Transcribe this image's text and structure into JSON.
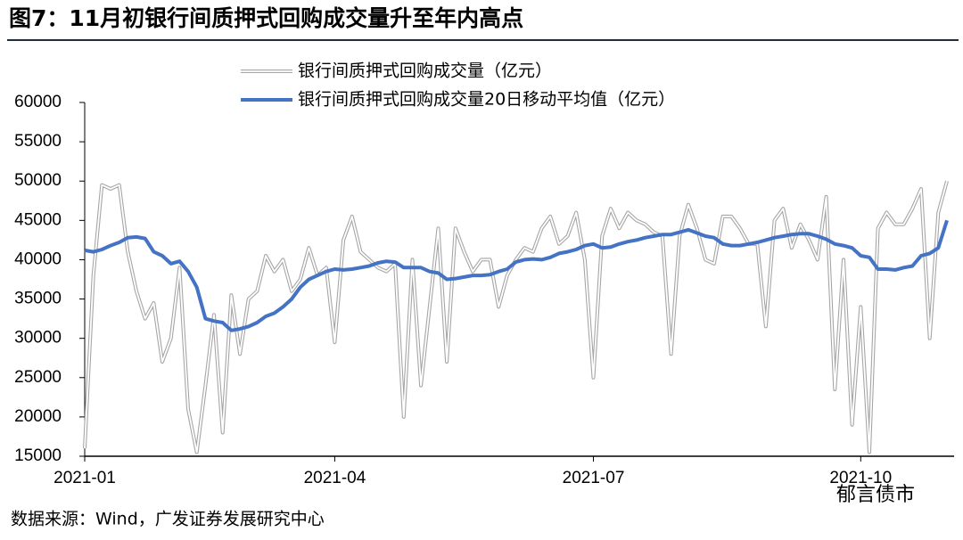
{
  "chart_data": {
    "type": "line",
    "title": "图7：11月初银行间质押式回购成交量升至年内高点",
    "source": "数据来源：Wind，广发证券发展研究中心",
    "watermark": "郁言债市",
    "categories": [
      "2021-01",
      null,
      null,
      null,
      null,
      null,
      null,
      null,
      null,
      null,
      null,
      null,
      null,
      null,
      null,
      null,
      null,
      null,
      null,
      null,
      null,
      null,
      null,
      null,
      null,
      null,
      null,
      null,
      null,
      "2021-04",
      null,
      null,
      null,
      null,
      null,
      null,
      null,
      null,
      null,
      null,
      null,
      null,
      null,
      null,
      null,
      null,
      null,
      null,
      null,
      null,
      null,
      null,
      null,
      null,
      null,
      null,
      null,
      null,
      null,
      "2021-07",
      null,
      null,
      null,
      null,
      null,
      null,
      null,
      null,
      null,
      null,
      null,
      null,
      null,
      null,
      null,
      null,
      null,
      null,
      null,
      null,
      null,
      null,
      null,
      null,
      null,
      null,
      null,
      null,
      null,
      null,
      "2021-10",
      null,
      null,
      null,
      null,
      null,
      null,
      null,
      null,
      null,
      null
    ],
    "series": [
      {
        "name": "银行间质押式回购成交量（亿元）",
        "color": "#a6a6a6",
        "style": "outline",
        "values": [
          16000,
          38000,
          49500,
          49000,
          49500,
          41000,
          36000,
          32500,
          34500,
          27000,
          30000,
          39000,
          21000,
          15500,
          24000,
          33000,
          18000,
          35500,
          28000,
          35000,
          36000,
          40500,
          38500,
          40000,
          36000,
          37500,
          41500,
          38000,
          39000,
          29500,
          42500,
          45500,
          41000,
          40000,
          39000,
          38500,
          39500,
          20000,
          40000,
          24000,
          34000,
          44000,
          27000,
          44000,
          41000,
          38500,
          40000,
          40000,
          34000,
          38000,
          40000,
          41500,
          41000,
          44000,
          45500,
          42000,
          43000,
          46000,
          40000,
          25000,
          43000,
          46500,
          44000,
          46000,
          45000,
          44500,
          43500,
          43000,
          28000,
          43000,
          47000,
          44000,
          40000,
          39500,
          45500,
          45500,
          44000,
          42000,
          42000,
          31500,
          45000,
          46500,
          41500,
          44500,
          42500,
          40000,
          48000,
          23500,
          40000,
          19000,
          34000,
          15500,
          44000,
          46000,
          44500,
          44500,
          46500,
          49000,
          30000,
          46000,
          50000
        ]
      },
      {
        "name": "银行间质押式回购成交量20日移动平均值（亿元）",
        "color": "#4472c4",
        "style": "solid",
        "values": [
          41200,
          41000,
          41300,
          41800,
          42200,
          42800,
          42900,
          42700,
          41000,
          40500,
          39500,
          39800,
          38500,
          36500,
          32500,
          32200,
          32000,
          31000,
          31200,
          31500,
          32000,
          32800,
          33200,
          34000,
          35000,
          36500,
          37500,
          38000,
          38500,
          38800,
          38700,
          38800,
          39000,
          39200,
          39600,
          39800,
          39700,
          39000,
          39000,
          39000,
          38500,
          38300,
          37500,
          37600,
          37800,
          38000,
          38000,
          38100,
          38500,
          38800,
          39700,
          40000,
          40100,
          40000,
          40300,
          40800,
          41000,
          41300,
          41800,
          42000,
          41500,
          41600,
          42000,
          42300,
          42500,
          42800,
          43000,
          43200,
          43200,
          43500,
          43800,
          43400,
          43000,
          42800,
          42000,
          41800,
          41800,
          42000,
          42200,
          42500,
          42800,
          43000,
          43200,
          43300,
          43300,
          43000,
          42600,
          42000,
          41800,
          41500,
          40500,
          40300,
          38800,
          38800,
          38700,
          39000,
          39200,
          40500,
          40800,
          41500,
          45000
        ]
      }
    ],
    "ylim": [
      15000,
      60000
    ],
    "yticks": [
      15000,
      20000,
      25000,
      30000,
      35000,
      40000,
      45000,
      50000,
      55000,
      60000
    ],
    "grid": false,
    "legend": "top"
  }
}
